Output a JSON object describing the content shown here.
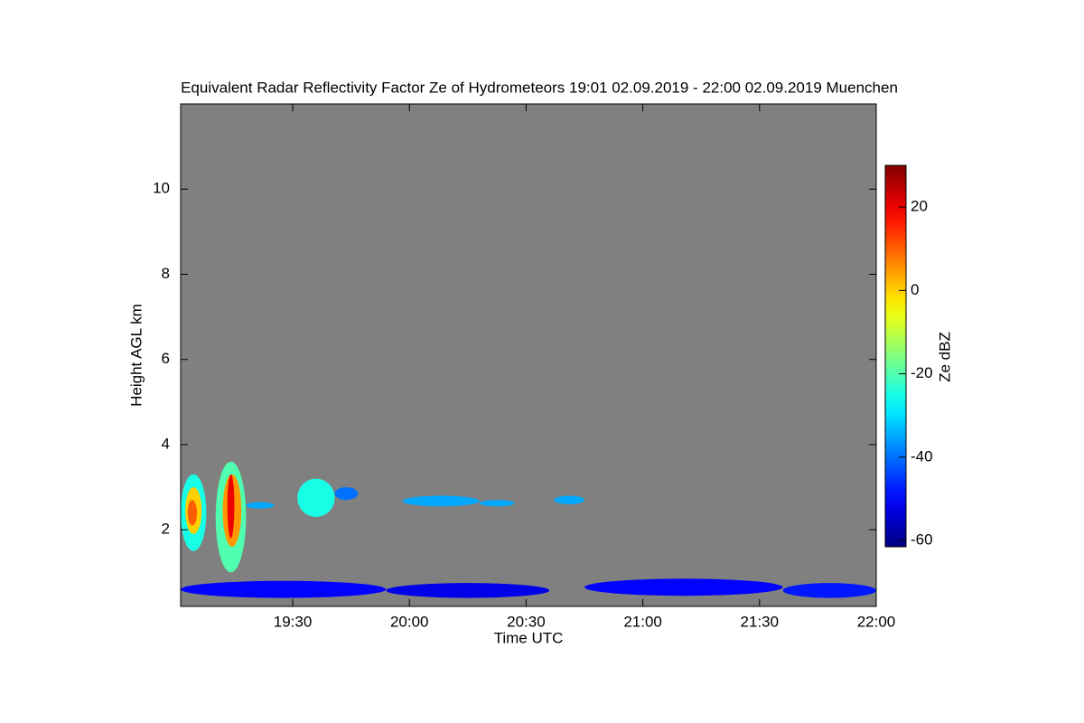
{
  "chart_data": {
    "type": "heatmap",
    "title": "Equivalent Radar Reflectivity Factor Ze of Hydrometeors   19:01 02.09.2019 - 22:00 02.09.2019 Muenchen",
    "x_label": "Time UTC",
    "y_label": "Height AGL km",
    "colorbar_label": "Ze dBZ",
    "background_color": "#808080",
    "xlim": [
      19.02,
      22.0
    ],
    "xticks": [
      {
        "value": 19.5,
        "label": "19:30"
      },
      {
        "value": 20.0,
        "label": "20:00"
      },
      {
        "value": 20.5,
        "label": "20:30"
      },
      {
        "value": 21.0,
        "label": "21:00"
      },
      {
        "value": 21.5,
        "label": "21:30"
      },
      {
        "value": 22.0,
        "label": "22:00"
      }
    ],
    "ylim": [
      0.2,
      12
    ],
    "yticks": [
      2,
      4,
      6,
      8,
      10
    ],
    "clim": [
      -61.5,
      30
    ],
    "cticks": [
      -60,
      -40,
      -20,
      0,
      20
    ],
    "colormap": "jet",
    "cells": [
      {
        "x": [
          19.02,
          19.13
        ],
        "y": [
          1.5,
          3.3
        ],
        "value": -25
      },
      {
        "x": [
          19.04,
          19.11
        ],
        "y": [
          1.9,
          3.0
        ],
        "value": 0
      },
      {
        "x": [
          19.05,
          19.09
        ],
        "y": [
          2.1,
          2.7
        ],
        "value": 10
      },
      {
        "x": [
          19.17,
          19.3
        ],
        "y": [
          1.0,
          3.6
        ],
        "value": -20
      },
      {
        "x": [
          19.2,
          19.28
        ],
        "y": [
          1.6,
          3.3
        ],
        "value": 5
      },
      {
        "x": [
          19.22,
          19.25
        ],
        "y": [
          1.8,
          3.3
        ],
        "value": 20
      },
      {
        "x": [
          19.3,
          19.42
        ],
        "y": [
          2.5,
          2.65
        ],
        "value": -35
      },
      {
        "x": [
          19.52,
          19.68
        ],
        "y": [
          2.3,
          3.2
        ],
        "value": -25
      },
      {
        "x": [
          19.68,
          19.78
        ],
        "y": [
          2.7,
          3.0
        ],
        "value": -40
      },
      {
        "x": [
          19.97,
          20.3
        ],
        "y": [
          2.55,
          2.8
        ],
        "value": -35
      },
      {
        "x": [
          20.3,
          20.45
        ],
        "y": [
          2.55,
          2.7
        ],
        "value": -35
      },
      {
        "x": [
          20.62,
          20.75
        ],
        "y": [
          2.6,
          2.8
        ],
        "value": -35
      },
      {
        "x": [
          19.02,
          19.9
        ],
        "y": [
          0.4,
          0.8
        ],
        "value": -50
      },
      {
        "x": [
          19.9,
          20.6
        ],
        "y": [
          0.4,
          0.75
        ],
        "value": -52
      },
      {
        "x": [
          20.75,
          21.6
        ],
        "y": [
          0.45,
          0.85
        ],
        "value": -50
      },
      {
        "x": [
          21.6,
          22.0
        ],
        "y": [
          0.4,
          0.75
        ],
        "value": -48
      }
    ]
  }
}
